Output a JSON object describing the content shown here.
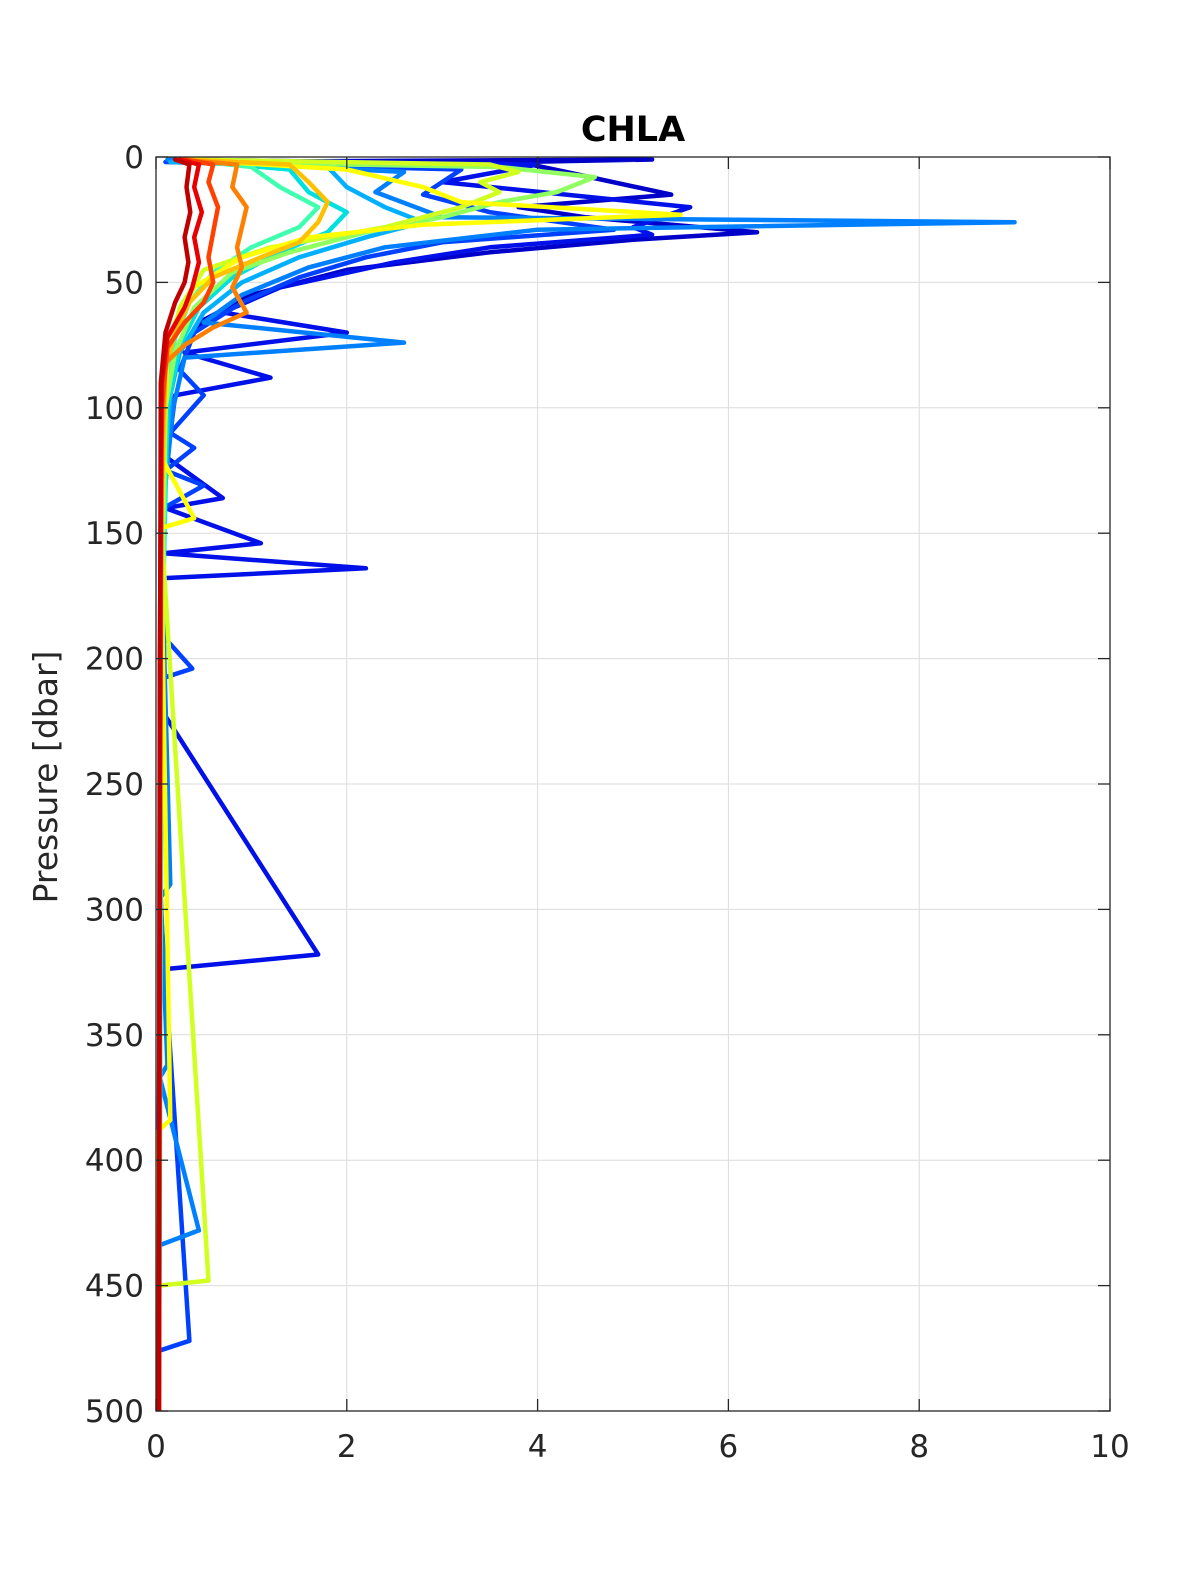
{
  "chart_data": {
    "type": "line",
    "title": "CHLA",
    "xlabel": "",
    "ylabel": "Pressure [dbar]",
    "xlim": [
      0,
      10
    ],
    "ylim": [
      0,
      500
    ],
    "y_reversed": true,
    "grid": true,
    "legend": "none",
    "x_ticks": [
      "0",
      "2",
      "4",
      "6",
      "8",
      "10"
    ],
    "y_ticks": [
      "0",
      "50",
      "100",
      "150",
      "200",
      "250",
      "300",
      "350",
      "400",
      "450",
      "500"
    ],
    "colormap": "jet",
    "series": [
      {
        "color": "#0000c8",
        "points": [
          [
            0.2,
            2
          ],
          [
            5.2,
            1
          ],
          [
            3.8,
            2
          ],
          [
            4.3,
            6
          ],
          [
            5.4,
            15
          ],
          [
            3.8,
            20
          ],
          [
            4.5,
            24
          ],
          [
            6.3,
            30
          ],
          [
            5.0,
            33
          ],
          [
            3.5,
            38
          ],
          [
            2.0,
            45
          ],
          [
            1.0,
            55
          ],
          [
            0.5,
            65
          ],
          [
            0.2,
            80
          ],
          [
            0.12,
            100
          ],
          [
            0.08,
            150
          ],
          [
            0.05,
            200
          ],
          [
            0.04,
            300
          ],
          [
            0.03,
            400
          ],
          [
            0.02,
            500
          ]
        ]
      },
      {
        "color": "#0010e8",
        "points": [
          [
            0.15,
            1
          ],
          [
            4.0,
            3
          ],
          [
            3.0,
            10
          ],
          [
            5.6,
            20
          ],
          [
            5.0,
            28
          ],
          [
            5.2,
            31
          ],
          [
            3.5,
            36
          ],
          [
            2.5,
            42
          ],
          [
            1.3,
            52
          ],
          [
            0.7,
            62
          ],
          [
            2.0,
            70
          ],
          [
            0.3,
            78
          ],
          [
            1.2,
            88
          ],
          [
            0.2,
            95
          ],
          [
            0.12,
            120
          ],
          [
            0.7,
            136
          ],
          [
            0.1,
            140
          ],
          [
            1.1,
            154
          ],
          [
            0.08,
            158
          ],
          [
            2.2,
            164
          ],
          [
            0.06,
            168
          ],
          [
            0.05,
            220
          ],
          [
            1.7,
            318
          ],
          [
            0.04,
            324
          ],
          [
            0.03,
            400
          ],
          [
            0.02,
            500
          ]
        ]
      },
      {
        "color": "#0040ff",
        "points": [
          [
            0.1,
            2
          ],
          [
            3.2,
            5
          ],
          [
            2.8,
            15
          ],
          [
            3.5,
            22
          ],
          [
            4.8,
            29
          ],
          [
            3.0,
            34
          ],
          [
            2.2,
            40
          ],
          [
            1.5,
            48
          ],
          [
            0.9,
            58
          ],
          [
            0.4,
            70
          ],
          [
            0.25,
            85
          ],
          [
            0.5,
            95
          ],
          [
            0.15,
            110
          ],
          [
            0.4,
            116
          ],
          [
            0.1,
            125
          ],
          [
            0.5,
            131
          ],
          [
            0.08,
            140
          ],
          [
            0.05,
            190
          ],
          [
            0.38,
            204
          ],
          [
            0.05,
            208
          ],
          [
            0.05,
            300
          ],
          [
            0.35,
            472
          ],
          [
            0.03,
            476
          ],
          [
            0.02,
            500
          ]
        ]
      },
      {
        "color": "#0080ff",
        "points": [
          [
            0.12,
            1
          ],
          [
            2.6,
            6
          ],
          [
            2.3,
            14
          ],
          [
            3.0,
            24
          ],
          [
            9.0,
            26
          ],
          [
            4.0,
            29
          ],
          [
            2.4,
            36
          ],
          [
            1.6,
            44
          ],
          [
            0.9,
            55
          ],
          [
            0.5,
            66
          ],
          [
            2.6,
            74
          ],
          [
            0.3,
            80
          ],
          [
            0.18,
            100
          ],
          [
            0.1,
            130
          ],
          [
            0.06,
            160
          ],
          [
            0.15,
            290
          ],
          [
            0.05,
            295
          ],
          [
            0.12,
            362
          ],
          [
            0.04,
            367
          ],
          [
            0.45,
            428
          ],
          [
            0.03,
            434
          ],
          [
            0.02,
            500
          ]
        ]
      },
      {
        "color": "#00b0ff",
        "points": [
          [
            0.15,
            2
          ],
          [
            1.8,
            4
          ],
          [
            2.0,
            12
          ],
          [
            2.4,
            20
          ],
          [
            2.8,
            26
          ],
          [
            2.2,
            32
          ],
          [
            1.5,
            40
          ],
          [
            0.9,
            50
          ],
          [
            0.5,
            62
          ],
          [
            0.25,
            78
          ],
          [
            0.15,
            95
          ],
          [
            0.1,
            120
          ],
          [
            0.06,
            180
          ],
          [
            0.04,
            260
          ],
          [
            0.03,
            400
          ],
          [
            0.02,
            500
          ]
        ]
      },
      {
        "color": "#00e0e0",
        "points": [
          [
            0.2,
            1
          ],
          [
            1.4,
            5
          ],
          [
            1.6,
            14
          ],
          [
            2.0,
            22
          ],
          [
            1.8,
            30
          ],
          [
            1.3,
            38
          ],
          [
            0.8,
            48
          ],
          [
            0.45,
            60
          ],
          [
            0.25,
            75
          ],
          [
            0.12,
            100
          ],
          [
            0.06,
            200
          ],
          [
            0.03,
            500
          ]
        ]
      },
      {
        "color": "#40ffb0",
        "points": [
          [
            0.3,
            1
          ],
          [
            1.0,
            4
          ],
          [
            1.3,
            12
          ],
          [
            1.7,
            20
          ],
          [
            1.5,
            28
          ],
          [
            1.0,
            36
          ],
          [
            0.6,
            46
          ],
          [
            0.35,
            58
          ],
          [
            0.2,
            72
          ],
          [
            0.1,
            100
          ],
          [
            0.05,
            250
          ],
          [
            0.03,
            500
          ]
        ]
      },
      {
        "color": "#90ff60",
        "points": [
          [
            0.35,
            2
          ],
          [
            3.6,
            4
          ],
          [
            4.6,
            8
          ],
          [
            4.2,
            14
          ],
          [
            3.6,
            18
          ],
          [
            3.0,
            24
          ],
          [
            2.2,
            30
          ],
          [
            1.4,
            38
          ],
          [
            0.8,
            46
          ],
          [
            0.4,
            60
          ],
          [
            0.2,
            78
          ],
          [
            0.1,
            100
          ],
          [
            0.05,
            200
          ],
          [
            0.03,
            500
          ]
        ]
      },
      {
        "color": "#d0ff20",
        "points": [
          [
            0.3,
            1
          ],
          [
            3.5,
            3
          ],
          [
            3.8,
            6
          ],
          [
            3.4,
            10
          ],
          [
            3.6,
            14
          ],
          [
            3.2,
            20
          ],
          [
            2.4,
            28
          ],
          [
            1.2,
            36
          ],
          [
            0.5,
            45
          ],
          [
            0.25,
            60
          ],
          [
            0.12,
            80
          ],
          [
            0.06,
            150
          ],
          [
            0.55,
            448
          ],
          [
            0.03,
            450
          ],
          [
            0.02,
            500
          ]
        ]
      },
      {
        "color": "#ffff00",
        "points": [
          [
            0.25,
            1
          ],
          [
            2.0,
            5
          ],
          [
            2.8,
            12
          ],
          [
            3.2,
            18
          ],
          [
            5.5,
            23
          ],
          [
            2.8,
            27
          ],
          [
            1.6,
            32
          ],
          [
            0.9,
            40
          ],
          [
            0.4,
            52
          ],
          [
            0.2,
            66
          ],
          [
            0.1,
            85
          ],
          [
            0.06,
            120
          ],
          [
            0.4,
            144
          ],
          [
            0.05,
            148
          ],
          [
            0.15,
            384
          ],
          [
            0.03,
            388
          ],
          [
            0.02,
            500
          ]
        ]
      },
      {
        "color": "#ffc000",
        "points": [
          [
            0.3,
            1
          ],
          [
            1.4,
            3
          ],
          [
            1.6,
            10
          ],
          [
            1.8,
            18
          ],
          [
            1.7,
            26
          ],
          [
            1.5,
            34
          ],
          [
            1.1,
            40
          ],
          [
            0.6,
            48
          ],
          [
            0.35,
            58
          ],
          [
            0.2,
            70
          ],
          [
            0.1,
            85
          ],
          [
            0.05,
            150
          ],
          [
            0.03,
            500
          ]
        ]
      },
      {
        "color": "#ff8000",
        "points": [
          [
            0.25,
            1
          ],
          [
            0.85,
            3
          ],
          [
            0.8,
            12
          ],
          [
            0.95,
            20
          ],
          [
            0.9,
            28
          ],
          [
            0.85,
            36
          ],
          [
            0.9,
            44
          ],
          [
            0.8,
            52
          ],
          [
            0.95,
            62
          ],
          [
            0.6,
            68
          ],
          [
            0.3,
            75
          ],
          [
            0.1,
            82
          ],
          [
            0.05,
            120
          ],
          [
            0.03,
            500
          ]
        ]
      },
      {
        "color": "#ff4000",
        "points": [
          [
            0.3,
            1
          ],
          [
            0.6,
            3
          ],
          [
            0.55,
            10
          ],
          [
            0.65,
            20
          ],
          [
            0.6,
            30
          ],
          [
            0.55,
            40
          ],
          [
            0.6,
            50
          ],
          [
            0.5,
            58
          ],
          [
            0.3,
            66
          ],
          [
            0.12,
            76
          ],
          [
            0.06,
            100
          ],
          [
            0.04,
            300
          ],
          [
            0.03,
            500
          ]
        ]
      },
      {
        "color": "#e80000",
        "points": [
          [
            0.25,
            1
          ],
          [
            0.45,
            3
          ],
          [
            0.4,
            12
          ],
          [
            0.48,
            22
          ],
          [
            0.4,
            32
          ],
          [
            0.45,
            42
          ],
          [
            0.38,
            52
          ],
          [
            0.3,
            60
          ],
          [
            0.12,
            72
          ],
          [
            0.06,
            90
          ],
          [
            0.04,
            200
          ],
          [
            0.03,
            500
          ]
        ]
      },
      {
        "color": "#c00000",
        "points": [
          [
            0.2,
            1
          ],
          [
            0.35,
            3
          ],
          [
            0.32,
            12
          ],
          [
            0.36,
            22
          ],
          [
            0.3,
            32
          ],
          [
            0.34,
            42
          ],
          [
            0.3,
            50
          ],
          [
            0.2,
            58
          ],
          [
            0.1,
            70
          ],
          [
            0.05,
            90
          ],
          [
            0.04,
            250
          ],
          [
            0.03,
            500
          ]
        ]
      }
    ]
  }
}
